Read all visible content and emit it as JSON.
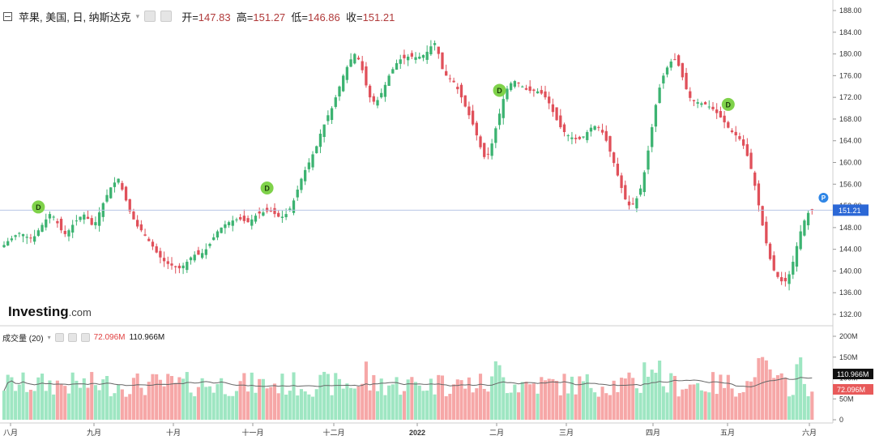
{
  "header": {
    "symbol": "苹果, 美国, 日, 纳斯达克",
    "open_label": "开=",
    "open_value": "147.83",
    "high_label": "高=",
    "high_value": "151.27",
    "low_label": "低=",
    "low_value": "146.86",
    "close_label": "收=",
    "close_value": "151.21"
  },
  "brand": {
    "name": "Investing",
    "suffix": ".com"
  },
  "volume_panel": {
    "title": "成交量 (20)",
    "last_volume": "72.096M",
    "ma_volume": "110.966M"
  },
  "price_tags": {
    "last_price": "151.21",
    "last_volume_tag": "72.096M",
    "ma_volume_tag": "110.966M"
  },
  "markers": {
    "dividend": "D",
    "split": "P"
  },
  "colors": {
    "up": "#3cb371",
    "down": "#e0505a",
    "vol_up": "#9ee6c2",
    "vol_down": "#f6a7a7",
    "last_price": "#2c68d6",
    "ma_line": "#666666"
  },
  "chart_data": {
    "type": "candlestick",
    "y_axis": {
      "min": 132,
      "max": 188,
      "ticks": [
        "188.00",
        "184.00",
        "180.00",
        "176.00",
        "172.00",
        "168.00",
        "164.00",
        "160.00",
        "156.00",
        "152.00",
        "148.00",
        "144.00",
        "140.00",
        "136.00",
        "132.00"
      ]
    },
    "volume_axis": {
      "ticks": [
        "200M",
        "150M",
        "100M",
        "50M",
        "0"
      ]
    },
    "x_labels": [
      "八月",
      "九月",
      "十月",
      "十一月",
      "十二月",
      "2022",
      "二月",
      "三月",
      "四月",
      "五月",
      "六月"
    ],
    "last_close": 151.21,
    "dividend_markers_index": [
      9,
      69,
      130,
      190
    ],
    "split_marker_index": 215,
    "close_path": [
      144.8,
      145.5,
      146,
      146.6,
      147,
      146.8,
      146.3,
      146,
      146.4,
      147.5,
      148.5,
      149.5,
      150.5,
      150,
      148.8,
      147.5,
      146.8,
      147.5,
      148.5,
      149.3,
      150,
      150.4,
      149.6,
      148.5,
      149,
      150.8,
      152.5,
      154,
      155.4,
      156.3,
      157,
      155,
      153,
      151,
      149.5,
      148.2,
      147.5,
      146.5,
      145.5,
      144.5,
      143.4,
      142.5,
      141.8,
      141.3,
      141,
      140.7,
      140.5,
      141,
      141.7,
      142.5,
      143,
      143,
      143.3,
      144,
      145,
      146.2,
      147.3,
      148,
      148.6,
      149,
      149.3,
      149.5,
      149.5,
      149.2,
      149,
      149.5,
      150.2,
      150.6,
      150.8,
      151,
      151,
      150.5,
      150,
      150,
      150.5,
      151.5,
      153,
      155,
      157,
      158.6,
      160,
      161.5,
      163,
      165.3,
      167,
      168.7,
      170,
      172,
      174,
      176,
      177.6,
      179,
      180,
      179,
      177,
      174.2,
      172,
      171.2,
      171.5,
      172.8,
      174.3,
      176,
      177.2,
      178.3,
      179,
      179.2,
      179.5,
      179.5,
      179.4,
      179.5,
      179.8,
      180.4,
      181.4,
      182,
      180,
      177.2,
      176,
      175.5,
      174.8,
      173.5,
      172,
      170.3,
      168.7,
      167,
      165,
      162.8,
      161,
      161.5,
      163.5,
      166.3,
      169,
      171.7,
      173.6,
      174.6,
      175,
      174.7,
      174,
      173.4,
      173.2,
      173.2,
      173.1,
      172.7,
      172,
      170.9,
      169.3,
      167.8,
      166.5,
      165.6,
      165,
      164.6,
      164.3,
      164.3,
      164.8,
      165.6,
      166.4,
      166.7,
      166.5,
      165.5,
      164,
      162,
      159.9,
      157.6,
      155.3,
      153.2,
      152.1,
      152.4,
      153.4,
      155.2,
      158.2,
      162.2,
      166.5,
      170.6,
      173.8,
      176,
      177.5,
      178.6,
      178.9,
      177.8,
      175.7,
      173.5,
      171.9,
      171.3,
      171.1,
      170.9,
      170.7,
      170.3,
      169.8,
      169.1,
      168.3,
      167.4,
      166.4,
      165.6,
      165,
      164.3,
      163.1,
      161.2,
      158.8,
      155.7,
      152.1,
      148.4,
      145.1,
      142.2,
      140.1,
      138.9,
      138.1,
      138.1,
      139.4,
      141.7,
      144.6,
      147.3,
      149.3,
      150.7,
      151.2
    ]
  }
}
